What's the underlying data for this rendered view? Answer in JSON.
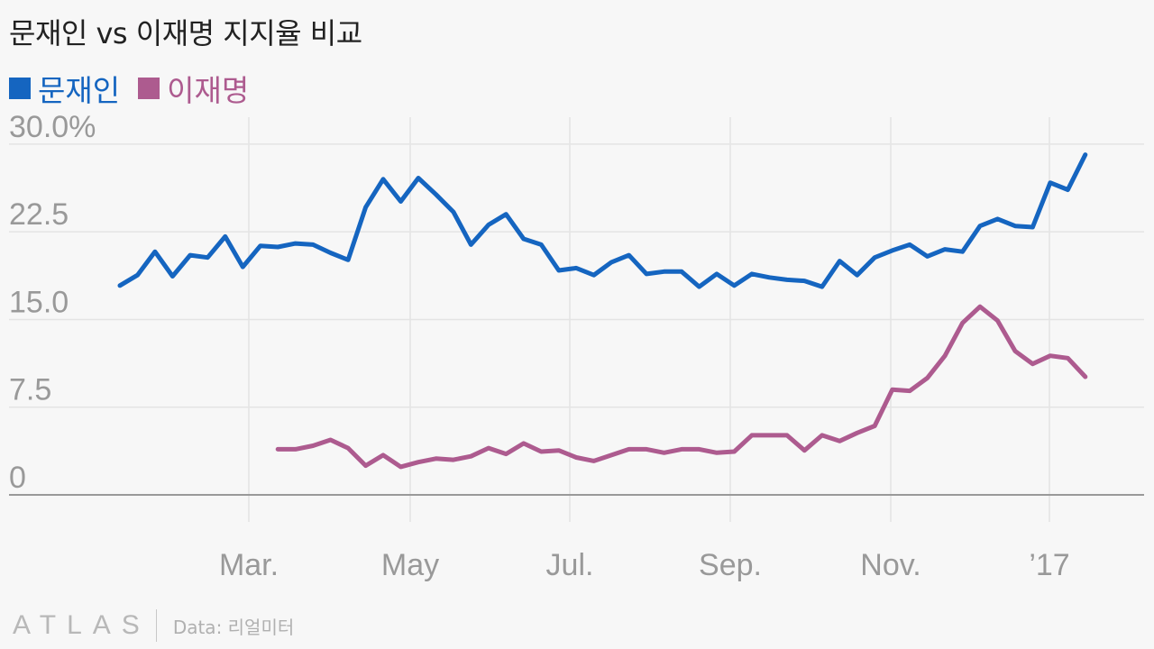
{
  "title": "문재인 vs 이재명 지지율 비교",
  "source": "Data: 리얼미터",
  "logo": "ATLAS",
  "chart_data": {
    "type": "line",
    "title": "문재인 vs 이재명 지지율 비교",
    "xlabel": "",
    "ylabel": "",
    "ylim": [
      0,
      30
    ],
    "y_ticks": [
      "0",
      "7.5",
      "15.0",
      "22.5",
      "30.0%"
    ],
    "x_ticks": [
      "Mar.",
      "May",
      "Jul.",
      "Sep.",
      "Nov.",
      "’17"
    ],
    "grid": true,
    "legend": "top-left",
    "series": [
      {
        "name": "문재인",
        "color": "#1565c0",
        "start_week": 0,
        "values": [
          17.9,
          18.8,
          20.8,
          18.7,
          20.5,
          20.3,
          22.1,
          19.5,
          21.3,
          21.2,
          21.5,
          21.4,
          20.7,
          20.1,
          24.6,
          27.0,
          25.1,
          27.1,
          25.7,
          24.2,
          21.4,
          23.1,
          24.0,
          21.9,
          21.4,
          19.2,
          19.4,
          18.8,
          19.9,
          20.5,
          18.9,
          19.1,
          19.1,
          17.8,
          18.9,
          17.9,
          18.9,
          18.6,
          18.4,
          18.3,
          17.8,
          20.0,
          18.8,
          20.3,
          20.9,
          21.4,
          20.4,
          21.0,
          20.8,
          23.0,
          23.6,
          23.0,
          22.9,
          26.7,
          26.1,
          29.1
        ]
      },
      {
        "name": "이재명",
        "color": "#ad5b8f",
        "start_week": 9,
        "values": [
          3.9,
          3.9,
          4.2,
          4.7,
          4.0,
          2.5,
          3.4,
          2.4,
          2.8,
          3.1,
          3.0,
          3.3,
          4.0,
          3.5,
          4.4,
          3.7,
          3.8,
          3.2,
          2.9,
          3.4,
          3.9,
          3.9,
          3.6,
          3.9,
          3.9,
          3.6,
          3.7,
          5.1,
          5.1,
          5.1,
          3.8,
          5.1,
          4.6,
          5.3,
          5.9,
          9.0,
          8.9,
          10.0,
          11.9,
          14.7,
          16.1,
          14.9,
          12.3,
          11.2,
          11.9,
          11.7,
          10.1
        ]
      }
    ]
  }
}
